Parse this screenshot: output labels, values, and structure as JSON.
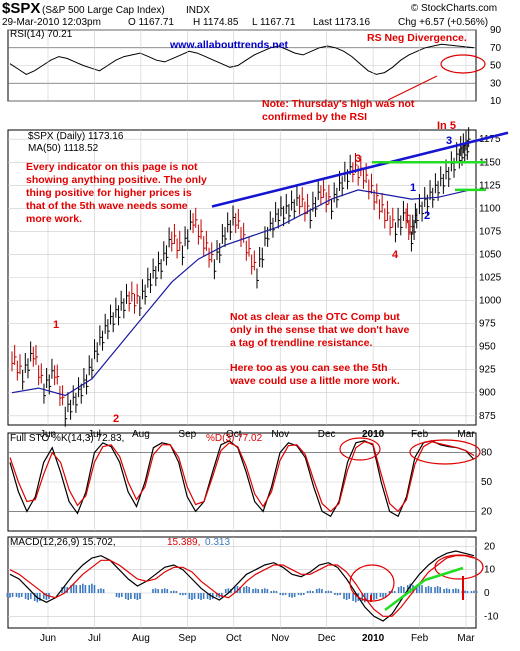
{
  "header": {
    "symbol": "$SPX",
    "name": "(S&P 500 Large Cap Index)",
    "exchange": "INDX",
    "date": "29-Mar-2010 12:03pm",
    "open": "O 1167.71",
    "high": "H 1174.85",
    "low": "L 1167.71",
    "last": "Last 1173.16",
    "change": "Chg +6.57 (+0.56%)",
    "watermark": "© StockCharts.com"
  },
  "colors": {
    "price": "#000000",
    "ma": "#1a1aa0",
    "trendline": "#1414d2",
    "support": "#22dd22",
    "annotation": "#e00000",
    "stoch_d": "#e00000",
    "macd_signal": "#e00000",
    "histogram": "#3a78c0",
    "grid": "#cccccc",
    "rsi_fill": "#8a8a8a"
  },
  "annotations": {
    "website": "www.allabouttrends.net",
    "rs_divergence": "RS Neg Divergence.",
    "note": [
      "Note: Thursday's high was not",
      "confirmed by the RSI"
    ],
    "every_indicator": [
      "Every indicator on this page is not",
      "showing anything positive. The only",
      "thing positive for higher prices is",
      "that of the 5th wave needs some",
      "more work."
    ],
    "otc": [
      "Not as clear as the OTC Comp but",
      "only in the sense that we don't have",
      "a tag of trendline resistance."
    ],
    "here_too": [
      "Here too as you can see the 5th",
      "wave could use a little more work."
    ],
    "in5": "In 5"
  },
  "chart_data": [
    {
      "type": "line",
      "panel": "RSI",
      "legend": "RSI(14) 70.21",
      "y_ticks": [
        10,
        30,
        50,
        70,
        90
      ],
      "ylim": [
        10,
        90
      ],
      "reference_lines": [
        30,
        70
      ],
      "series": [
        {
          "name": "RSI(14)",
          "values": [
            52,
            46,
            40,
            44,
            50,
            56,
            60,
            58,
            54,
            50,
            47,
            44,
            50,
            56,
            60,
            62,
            64,
            60,
            56,
            54,
            58,
            62,
            66,
            64,
            60,
            56,
            52,
            48,
            50,
            56,
            62,
            66,
            70,
            72,
            68,
            64,
            62,
            66,
            70,
            72,
            70,
            66,
            60,
            52,
            44,
            40,
            42,
            48,
            56,
            62,
            66,
            70,
            72,
            74,
            73,
            72,
            71,
            70
          ]
        }
      ]
    },
    {
      "type": "line",
      "panel": "price",
      "legend_price": "$SPX (Daily) 1173.16",
      "legend_ma": "MA(50) 1118.52",
      "x_labels": [
        "Jun",
        "Jul",
        "Aug",
        "Sep",
        "Oct",
        "Nov",
        "Dec",
        "2010",
        "Feb",
        "Mar"
      ],
      "y_ticks": [
        875,
        900,
        925,
        950,
        975,
        1000,
        1025,
        1050,
        1075,
        1100,
        1125,
        1150,
        1175
      ],
      "ylim": [
        865,
        1185
      ],
      "series": [
        {
          "name": "$SPX (Daily)",
          "values": [
            [
              0,
              940
            ],
            [
              4,
              920
            ],
            [
              8,
              945
            ],
            [
              12,
              905
            ],
            [
              16,
              925
            ],
            [
              20,
              880
            ],
            [
              24,
              895
            ],
            [
              28,
              915
            ],
            [
              32,
              950
            ],
            [
              36,
              975
            ],
            [
              40,
              990
            ],
            [
              44,
              1005
            ],
            [
              48,
              1000
            ],
            [
              52,
              1025
            ],
            [
              56,
              1040
            ],
            [
              60,
              1070
            ],
            [
              64,
              1055
            ],
            [
              68,
              1090
            ],
            [
              72,
              1065
            ],
            [
              76,
              1040
            ],
            [
              80,
              1075
            ],
            [
              84,
              1090
            ],
            [
              88,
              1060
            ],
            [
              92,
              1030
            ],
            [
              96,
              1075
            ],
            [
              100,
              1095
            ],
            [
              104,
              1100
            ],
            [
              108,
              1110
            ],
            [
              112,
              1095
            ],
            [
              116,
              1120
            ],
            [
              120,
              1105
            ],
            [
              124,
              1130
            ],
            [
              128,
              1145
            ],
            [
              132,
              1138
            ],
            [
              136,
              1115
            ],
            [
              140,
              1095
            ],
            [
              144,
              1080
            ],
            [
              148,
              1095
            ],
            [
              150,
              1070
            ],
            [
              152,
              1095
            ],
            [
              156,
              1110
            ],
            [
              160,
              1125
            ],
            [
              164,
              1140
            ],
            [
              168,
              1160
            ],
            [
              170,
              1166
            ],
            [
              172,
              1173
            ]
          ]
        },
        {
          "name": "MA(50)",
          "values": [
            [
              0,
              900
            ],
            [
              10,
              905
            ],
            [
              20,
              897
            ],
            [
              30,
              915
            ],
            [
              40,
              950
            ],
            [
              50,
              985
            ],
            [
              60,
              1020
            ],
            [
              70,
              1045
            ],
            [
              80,
              1060
            ],
            [
              90,
              1070
            ],
            [
              100,
              1080
            ],
            [
              110,
              1095
            ],
            [
              120,
              1110
            ],
            [
              130,
              1120
            ],
            [
              140,
              1115
            ],
            [
              150,
              1110
            ],
            [
              160,
              1112
            ],
            [
              172,
              1120
            ]
          ]
        }
      ]
    },
    {
      "type": "line",
      "panel": "stochastic",
      "legend_k": "Full STO %K(14,3) 72.83,",
      "legend_d": "%D(3) 77.02",
      "y_ticks": [
        20,
        50,
        80
      ],
      "ylim": [
        0,
        100
      ],
      "reference_lines": [
        20,
        80
      ],
      "series": [
        {
          "name": "%K(14,3)",
          "values": [
            70,
            40,
            20,
            35,
            70,
            85,
            60,
            30,
            18,
            40,
            80,
            90,
            86,
            70,
            40,
            25,
            50,
            85,
            90,
            88,
            70,
            35,
            20,
            30,
            60,
            88,
            92,
            85,
            60,
            30,
            20,
            45,
            80,
            90,
            87,
            75,
            45,
            20,
            15,
            30,
            70,
            90,
            92,
            88,
            50,
            20,
            15,
            35,
            75,
            90,
            92,
            88,
            86,
            85,
            82,
            73
          ]
        },
        {
          "name": "%D(3)",
          "values": [
            75,
            50,
            30,
            32,
            58,
            80,
            70,
            42,
            26,
            36,
            70,
            86,
            88,
            76,
            50,
            32,
            45,
            78,
            88,
            88,
            75,
            45,
            27,
            30,
            55,
            82,
            90,
            86,
            66,
            38,
            25,
            40,
            72,
            87,
            88,
            78,
            52,
            28,
            20,
            28,
            62,
            85,
            91,
            89,
            58,
            28,
            20,
            32,
            68,
            86,
            91,
            89,
            87,
            85,
            82,
            77
          ]
        }
      ]
    },
    {
      "type": "line",
      "panel": "MACD",
      "legend_macd": "MACD(12,26,9) 15.702,",
      "legend_signal": "15.389,",
      "legend_hist": "0.313",
      "y_ticks": [
        -10,
        0,
        10,
        20
      ],
      "ylim": [
        -15,
        24
      ],
      "series": [
        {
          "name": "MACD(12,26,9)",
          "values": [
            8,
            6,
            2,
            -2,
            -4,
            -2,
            3,
            8,
            12,
            15,
            16,
            14,
            10,
            6,
            3,
            5,
            8,
            11,
            12,
            10,
            6,
            2,
            -1,
            -3,
            0,
            4,
            8,
            10,
            12,
            13,
            11,
            8,
            7,
            9,
            12,
            13,
            11,
            6,
            0,
            -6,
            -10,
            -12,
            -9,
            -3,
            3,
            8,
            12,
            15,
            17,
            18,
            17,
            16
          ]
        },
        {
          "name": "signal",
          "values": [
            10,
            8,
            5,
            2,
            -1,
            -2,
            0,
            4,
            8,
            11,
            14,
            14,
            12,
            9,
            6,
            5,
            6,
            9,
            11,
            11,
            9,
            5,
            2,
            -1,
            -2,
            1,
            5,
            8,
            10,
            12,
            12,
            10,
            8,
            8,
            10,
            12,
            12,
            9,
            4,
            -2,
            -7,
            -10,
            -10,
            -6,
            -1,
            4,
            9,
            12,
            15,
            16,
            16,
            15
          ]
        }
      ]
    }
  ],
  "wave_labels": [
    {
      "text": "1",
      "color": "red"
    },
    {
      "text": "2",
      "color": "red"
    },
    {
      "text": "3",
      "color": "red"
    },
    {
      "text": "4",
      "color": "red"
    },
    {
      "text": "1",
      "color": "blue"
    },
    {
      "text": "2",
      "color": "blue"
    },
    {
      "text": "3",
      "color": "blue"
    }
  ]
}
